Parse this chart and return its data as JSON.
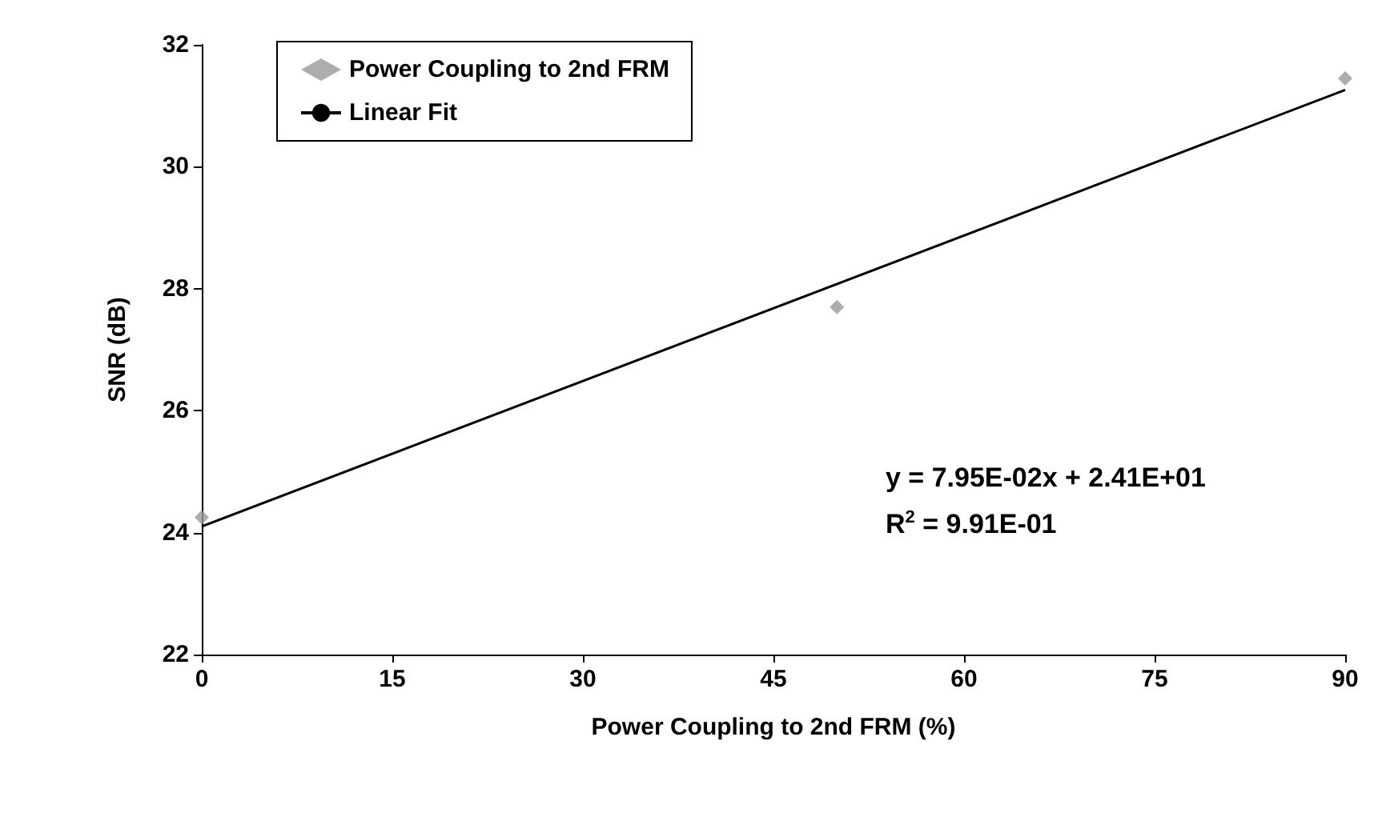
{
  "chart_data": {
    "type": "scatter",
    "xlabel": "Power Coupling to 2nd FRM (%)",
    "ylabel": "SNR (dB)",
    "xlim": [
      0,
      90
    ],
    "xticks": [
      0,
      15,
      30,
      45,
      60,
      75,
      90
    ],
    "ylim": [
      22,
      32
    ],
    "yticks": [
      22,
      24,
      26,
      28,
      30,
      32
    ],
    "grid": false,
    "legend": "top left",
    "series": [
      {
        "name": "Power Coupling to 2nd FRM",
        "marker": "diamond",
        "color": "#999999",
        "x": [
          0,
          50,
          90
        ],
        "values": [
          24.25,
          27.7,
          31.45
        ]
      },
      {
        "name": "Linear Fit",
        "type": "line",
        "marker": "none",
        "color": "#000000",
        "x": [
          0,
          90
        ],
        "values": [
          24.1,
          31.26
        ]
      }
    ],
    "annotations": [
      "y = 7.95E-02x + 2.41E+01",
      "R$^{2}$ = 9.91E-01"
    ]
  }
}
